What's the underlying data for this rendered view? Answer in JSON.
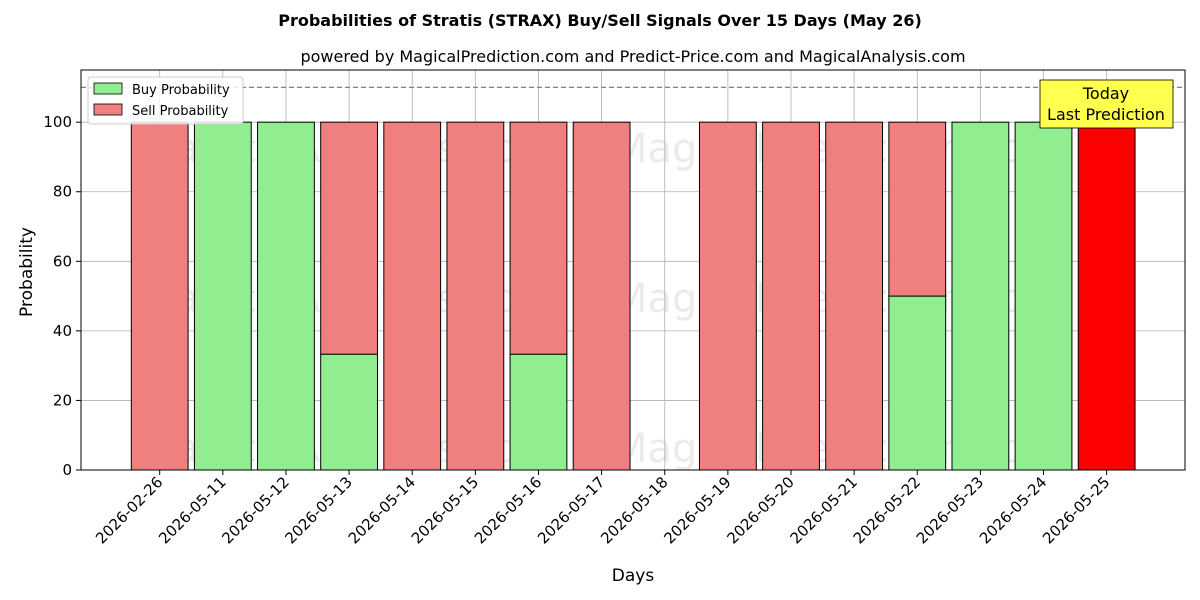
{
  "chart_data": {
    "type": "bar",
    "title": "Probabilities of Stratis (STRAX) Buy/Sell Signals Over 15 Days (May 26)",
    "subtitle": "powered by MagicalPrediction.com and Predict-Price.com and MagicalAnalysis.com",
    "xlabel": "Days",
    "ylabel": "Probability",
    "ylim": [
      0,
      115
    ],
    "yticks": [
      0,
      20,
      40,
      60,
      80,
      100
    ],
    "reference_line": 110,
    "grid": true,
    "legend_position": "top-left",
    "categories": [
      "2026-02-26",
      "2026-05-11",
      "2026-05-12",
      "2026-05-13",
      "2026-05-14",
      "2026-05-15",
      "2026-05-16",
      "2026-05-17",
      "2026-05-18",
      "2026-05-19",
      "2026-05-20",
      "2026-05-21",
      "2026-05-22",
      "2026-05-23",
      "2026-05-24",
      "2026-05-25"
    ],
    "series": [
      {
        "name": "Buy Probability",
        "color": "#90ee90",
        "values": [
          0,
          100,
          100,
          33.3,
          0,
          0,
          33.3,
          0,
          0,
          0,
          0,
          0,
          50,
          100,
          100,
          0
        ]
      },
      {
        "name": "Sell Probability",
        "color": "#f08080",
        "values": [
          100,
          0,
          0,
          66.7,
          100,
          100,
          66.7,
          100,
          0,
          100,
          100,
          100,
          50,
          0,
          0,
          100
        ]
      }
    ],
    "highlight": {
      "category": "2026-05-25",
      "color": "#ff0000"
    },
    "annotation": {
      "lines": [
        "Today",
        "Last Prediction"
      ],
      "background": "#ffff4d"
    },
    "watermarks": [
      "MagicalAnalysis.com",
      "MagicalPrediction.com"
    ]
  }
}
